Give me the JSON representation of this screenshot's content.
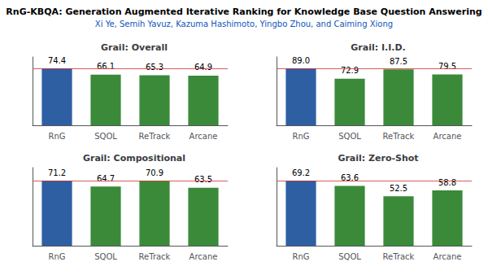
{
  "title": "RnG-KBQA: Generation Augmented Iterative Ranking for Knowledge Base Question Answering",
  "subtitle": "Xi Ye, Semih Yavuz, Kazuma Hashimoto, Yingbo Zhou, and Caiming Xiong",
  "chart_data": [
    {
      "type": "bar",
      "title": "Grail: Overall",
      "categories": [
        "RnG",
        "SQOL",
        "ReTrack",
        "Arcane"
      ],
      "values": [
        74.4,
        66.1,
        65.3,
        64.9
      ],
      "value_labels": [
        "74.4",
        "66.1",
        "65.3",
        "64.9"
      ],
      "colors": [
        "#2e5fa3",
        "#3a8a3a",
        "#3a8a3a",
        "#3a8a3a"
      ],
      "ylim": [
        0,
        89.28
      ],
      "grid": false,
      "data_labels": true,
      "tick_labels": "x",
      "reference_line": {
        "value": 74.4,
        "color": "#cc3333"
      }
    },
    {
      "type": "bar",
      "title": "Grail: I.I.D.",
      "categories": [
        "RnG",
        "SQOL",
        "ReTrack",
        "Arcane"
      ],
      "values": [
        89.0,
        72.9,
        87.5,
        79.5
      ],
      "value_labels": [
        "89.0",
        "72.9",
        "87.5",
        "79.5"
      ],
      "colors": [
        "#2e5fa3",
        "#3a8a3a",
        "#3a8a3a",
        "#3a8a3a"
      ],
      "ylim": [
        0,
        106.8
      ],
      "grid": false,
      "data_labels": true,
      "tick_labels": "x",
      "reference_line": {
        "value": 89.0,
        "color": "#cc3333"
      }
    },
    {
      "type": "bar",
      "title": "Grail: Compositional",
      "categories": [
        "RnG",
        "SQOL",
        "ReTrack",
        "Arcane"
      ],
      "values": [
        71.2,
        64.7,
        70.9,
        63.5
      ],
      "value_labels": [
        "71.2",
        "64.7",
        "70.9",
        "63.5"
      ],
      "colors": [
        "#2e5fa3",
        "#3a8a3a",
        "#3a8a3a",
        "#3a8a3a"
      ],
      "ylim": [
        0,
        85.44
      ],
      "grid": false,
      "data_labels": true,
      "tick_labels": "x",
      "reference_line": {
        "value": 71.2,
        "color": "#cc3333"
      }
    },
    {
      "type": "bar",
      "title": "Grail: Zero-Shot",
      "categories": [
        "RnG",
        "SQOL",
        "ReTrack",
        "Arcane"
      ],
      "values": [
        69.2,
        63.6,
        52.5,
        58.8
      ],
      "value_labels": [
        "69.2",
        "63.6",
        "52.5",
        "58.8"
      ],
      "colors": [
        "#2e5fa3",
        "#3a8a3a",
        "#3a8a3a",
        "#3a8a3a"
      ],
      "ylim": [
        0,
        83.04
      ],
      "grid": false,
      "data_labels": true,
      "tick_labels": "x",
      "reference_line": {
        "value": 69.2,
        "color": "#cc3333"
      }
    }
  ]
}
